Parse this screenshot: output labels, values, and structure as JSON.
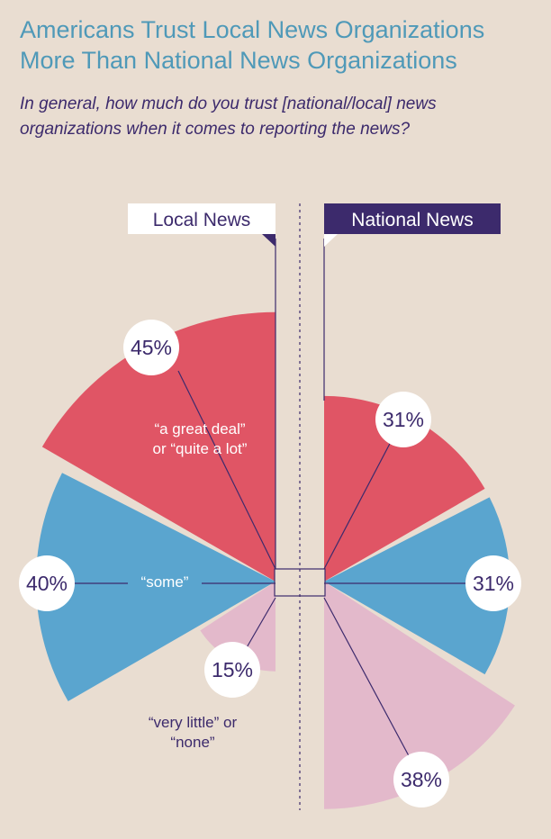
{
  "title_lines": [
    "Americans Trust Local News Organizations",
    "More Than National News Organizations"
  ],
  "subtitle_lines": [
    "In general, how much do you trust [national/local] news",
    "organizations when it comes to reporting the news?"
  ],
  "colors": {
    "background": "#e9ddd1",
    "title": "#4f99b8",
    "subtitle": "#3c2a6c",
    "great_deal": "#e05565",
    "some": "#5aa5cf",
    "very_little": "#e3b9cb",
    "national_tag": "#3c2a6c"
  },
  "chart_data": {
    "type": "pie",
    "title": "Americans Trust Local News Organizations More Than National News Organizations",
    "subtitle": "In general, how much do you trust [national/local] news organizations when it comes to reporting the news?",
    "categories": [
      "“a great deal” or “quite a lot”",
      "“some”",
      "“very little” or “none”"
    ],
    "category_label_lines": [
      [
        "“a great deal”",
        "or “quite a lot”"
      ],
      [
        "“some”"
      ],
      [
        "“very little” or",
        "“none”"
      ]
    ],
    "series": [
      {
        "name": "Local News",
        "values": [
          45,
          40,
          15
        ],
        "labels": [
          "45%",
          "40%",
          "15%"
        ]
      },
      {
        "name": "National News",
        "values": [
          31,
          31,
          38
        ],
        "labels": [
          "31%",
          "31%",
          "38%"
        ]
      }
    ],
    "unit": "%"
  }
}
